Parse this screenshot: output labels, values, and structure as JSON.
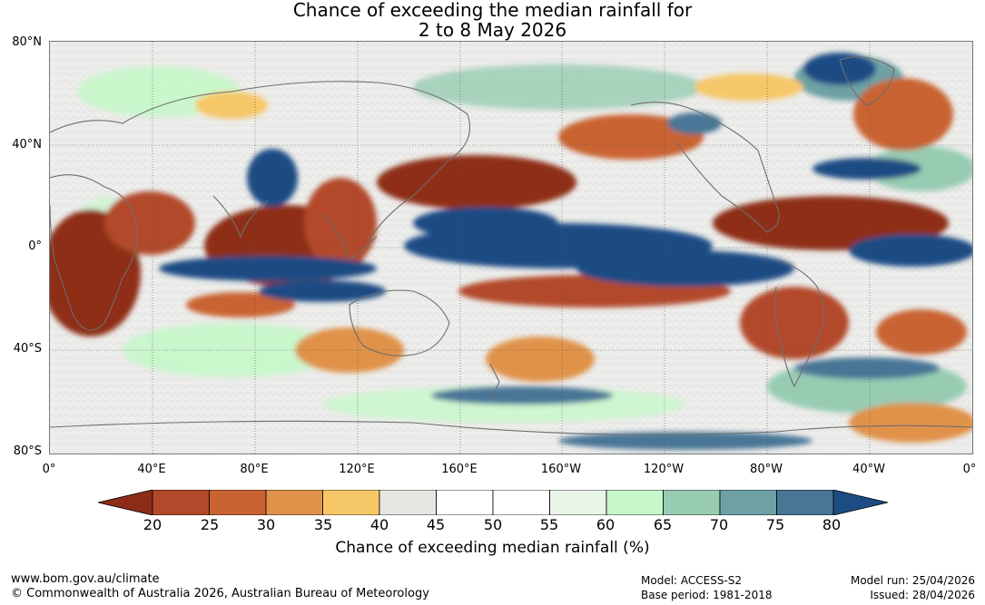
{
  "title": {
    "line1": "Chance of exceeding the median rainfall for",
    "line2": "2 to 8 May 2026"
  },
  "map": {
    "lat_labels": [
      "80°N",
      "40°N",
      "0°",
      "40°S",
      "80°S"
    ],
    "lon_labels": [
      "0°",
      "40°E",
      "80°E",
      "120°E",
      "160°E",
      "160°W",
      "120°W",
      "80°W",
      "40°W",
      "0°"
    ]
  },
  "colorbar": {
    "ticks": [
      "20",
      "25",
      "30",
      "35",
      "40",
      "45",
      "50",
      "55",
      "60",
      "65",
      "70",
      "75",
      "80"
    ],
    "colors": [
      "#8e2d17",
      "#b2492a",
      "#c96331",
      "#e0924a",
      "#f6c767",
      "#e8e6e1",
      "#ffffff",
      "#ffffff",
      "#e8f5e8",
      "#c5f7c9",
      "#97ccb2",
      "#6da1a5",
      "#4a7696",
      "#1c4c84"
    ],
    "label": "Chance of exceeding median rainfall (%)"
  },
  "footer": {
    "website": "www.bom.gov.au/climate",
    "copyright": "© Commonwealth of Australia 2026, Australian Bureau of Meteorology",
    "model": "Model: ACCESS-S2",
    "base_period": "Base period: 1981-2018",
    "model_run": "Model run: 25/04/2026",
    "issued": "Issued: 28/04/2026"
  }
}
